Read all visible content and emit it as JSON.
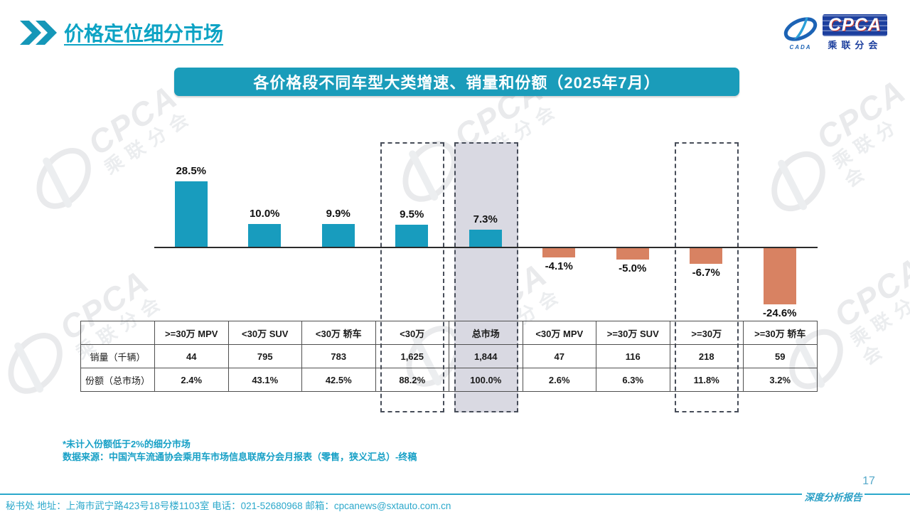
{
  "header": {
    "title": "价格定位细分市场"
  },
  "logo": {
    "acronym": "CPCA",
    "subtitle": "乘联分会",
    "emblem_caption": "CADA"
  },
  "banner": {
    "title": "各价格段不同车型大类增速、销量和份额（2025年7月）"
  },
  "chart_data": {
    "type": "bar",
    "title": "各价格段不同车型大类增速、销量和份额（2025年7月）",
    "categories": [
      ">=30万 MPV",
      "<30万 SUV",
      "<30万 轿车",
      "<30万",
      "总市场",
      "<30万 MPV",
      ">=30万 SUV",
      ">=30万",
      ">=30万 轿车"
    ],
    "values": [
      28.5,
      10.0,
      9.9,
      9.5,
      7.3,
      -4.1,
      -5.0,
      -6.7,
      -24.6
    ],
    "labels": [
      "28.5%",
      "10.0%",
      "9.9%",
      "9.5%",
      "7.3%",
      "-4.1%",
      "-5.0%",
      "-6.7%",
      "-24.6%"
    ],
    "positive_color": "#189CBE",
    "negative_color": "#D88262",
    "highlighted_categories": [
      "<30万",
      "总市场",
      ">=30万"
    ],
    "xlabel": "",
    "ylabel": "",
    "ylim": [
      -30,
      32
    ],
    "grid": false,
    "legend": "none"
  },
  "table": {
    "corner": "",
    "columns": [
      ">=30万 MPV",
      "<30万 SUV",
      "<30万 轿车",
      "<30万",
      "总市场",
      "<30万 MPV",
      ">=30万 SUV",
      ">=30万",
      ">=30万 轿车"
    ],
    "rows": [
      {
        "label": "销量（千辆）",
        "cells": [
          "44",
          "795",
          "783",
          "1,625",
          "1,844",
          "47",
          "116",
          "218",
          "59"
        ]
      },
      {
        "label": "份额（总市场）",
        "cells": [
          "2.4%",
          "43.1%",
          "42.5%",
          "88.2%",
          "100.0%",
          "2.6%",
          "6.3%",
          "11.8%",
          "3.2%"
        ]
      }
    ]
  },
  "notes": {
    "line1": "*未计入份额低于2%的细分市场",
    "line2": "数据来源：中国汽车流通协会乘用车市场信息联席分会月报表（零售，狭义汇总）-终稿"
  },
  "footer": {
    "contact": "秘书处  地址：上海市武宁路423号18号楼1103室  电话：021-52680968   邮箱：cpcanews@sxtauto.com.cn",
    "report_label": "深度分析报告",
    "page_number": "17"
  },
  "watermark": {
    "text1": "CPCA",
    "text2": "乘联分会"
  },
  "colors": {
    "teal": "#189CBE",
    "salmon": "#D88262",
    "banner_bg": "#1A9CBA",
    "title_text": "#0DA3C4",
    "note_text": "#17A0C6",
    "footer_text": "#2BA8CB",
    "logo_blue": "#1C3F9E",
    "highlight_gray": "#D9D9E2"
  }
}
